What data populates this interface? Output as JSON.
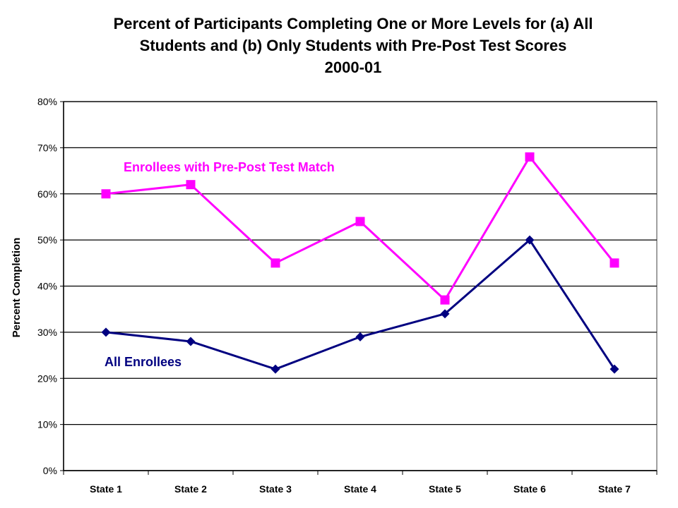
{
  "chart_data": {
    "type": "line",
    "title_lines": [
      "Percent of Participants Completing One or More Levels for (a) All",
      "Students and (b) Only Students with Pre-Post Test Scores",
      "2000-01"
    ],
    "xlabel": "",
    "ylabel": "Percent Completion",
    "categories": [
      "State 1",
      "State 2",
      "State 3",
      "State 4",
      "State 5",
      "State 6",
      "State 7"
    ],
    "ylim": [
      0,
      80
    ],
    "yticks": [
      0,
      10,
      20,
      30,
      40,
      50,
      60,
      70,
      80
    ],
    "ytick_labels": [
      "0%",
      "10%",
      "20%",
      "30%",
      "40%",
      "50%",
      "60%",
      "70%",
      "80%"
    ],
    "grid": true,
    "series": [
      {
        "name": "Enrollees with Pre-Post Test Match",
        "values": [
          60,
          62,
          45,
          54,
          37,
          68,
          45
        ],
        "color": "#ff00ff",
        "marker": "square"
      },
      {
        "name": "All Enrollees",
        "values": [
          30,
          28,
          22,
          29,
          34,
          50,
          22
        ],
        "color": "#000080",
        "marker": "diamond"
      }
    ]
  }
}
